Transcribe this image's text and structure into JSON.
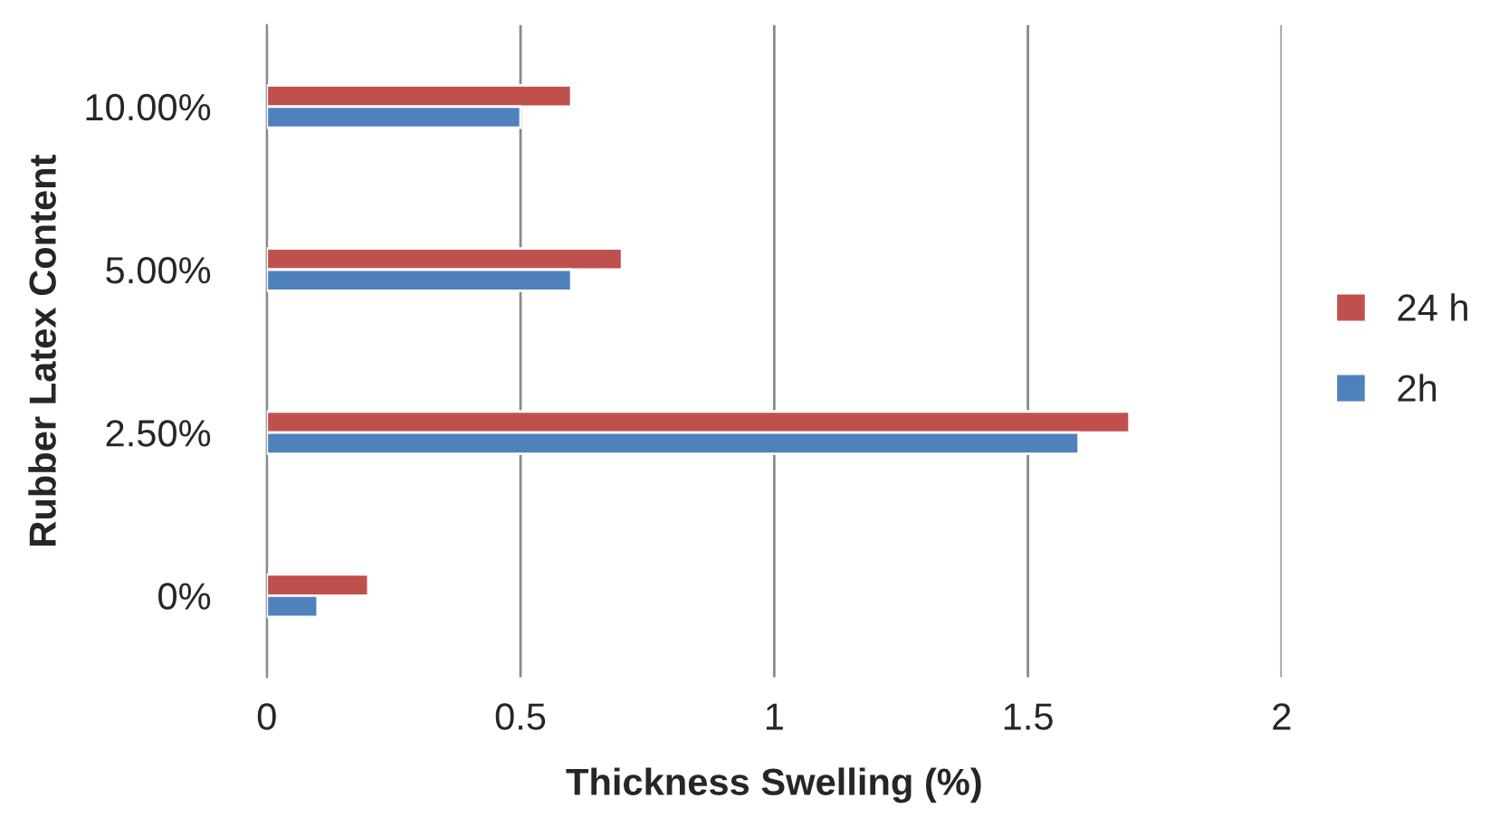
{
  "chart_data": {
    "type": "bar",
    "orientation": "horizontal",
    "xlabel": "Thickness Swelling (%)",
    "ylabel": "Rubber Latex Content",
    "categories": [
      "10.00%",
      "5.00%",
      "2.50%",
      "0%"
    ],
    "series": [
      {
        "name": "24 h",
        "color": "#c0504d",
        "values": [
          0.6,
          0.7,
          1.7,
          0.2
        ]
      },
      {
        "name": "2h",
        "color": "#4f81bd",
        "values": [
          0.5,
          0.6,
          1.6,
          0.1
        ]
      }
    ],
    "xlim": [
      0,
      2
    ],
    "xticks": [
      0,
      0.5,
      1,
      1.5,
      2
    ],
    "grid": "x",
    "legend": "right"
  }
}
